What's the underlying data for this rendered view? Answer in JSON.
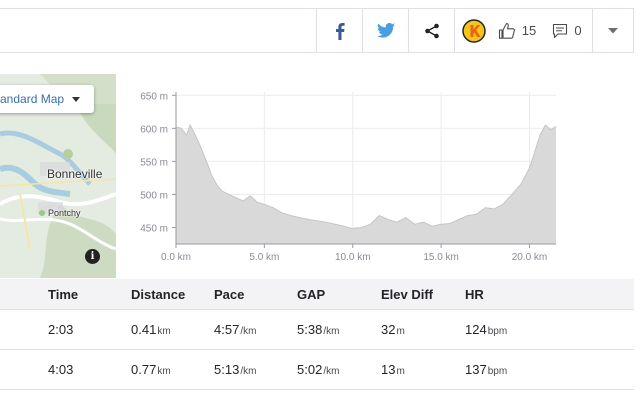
{
  "actions": {
    "kudos_count": "15",
    "comments_count": "0"
  },
  "map": {
    "type_label": "andard Map",
    "town_main": "Bonneville",
    "town_small": "Pontchy",
    "info_label": "i"
  },
  "chart_data": {
    "type": "area",
    "xlabel": "",
    "ylabel": "",
    "x_ticks": [
      "0.0 km",
      "5.0 km",
      "10.0 km",
      "15.0 km",
      "20.0 km"
    ],
    "y_ticks": [
      "650 m",
      "600 m",
      "550 m",
      "500 m",
      "450 m"
    ],
    "xlim": [
      0,
      21.5
    ],
    "ylim": [
      425,
      655
    ],
    "grid": true,
    "fill_color": "#d9d9d9",
    "x": [
      0,
      0.3,
      0.6,
      0.8,
      1.0,
      1.3,
      1.5,
      1.8,
      2.0,
      2.3,
      2.6,
      3.0,
      3.4,
      3.8,
      4.2,
      4.6,
      5.0,
      5.5,
      6.0,
      6.5,
      7.0,
      7.5,
      8.0,
      8.5,
      9.0,
      9.5,
      10.0,
      10.5,
      11.0,
      11.5,
      12.0,
      12.5,
      13.0,
      13.5,
      14.0,
      14.5,
      15.0,
      15.5,
      16.0,
      16.5,
      17.0,
      17.5,
      18.0,
      18.5,
      19.0,
      19.5,
      20.0,
      20.3,
      20.6,
      20.9,
      21.2,
      21.5
    ],
    "y": [
      602,
      600,
      590,
      605,
      595,
      578,
      565,
      545,
      530,
      515,
      505,
      500,
      495,
      490,
      498,
      488,
      485,
      480,
      472,
      468,
      465,
      462,
      460,
      458,
      455,
      452,
      448,
      450,
      455,
      468,
      462,
      458,
      465,
      455,
      458,
      452,
      455,
      456,
      462,
      468,
      470,
      480,
      478,
      485,
      500,
      515,
      540,
      565,
      590,
      605,
      598,
      603
    ]
  },
  "splits": {
    "headers": [
      "Time",
      "Distance",
      "Pace",
      "GAP",
      "Elev Diff",
      "HR"
    ],
    "rows": [
      {
        "time": "2:03",
        "distance": "0.41",
        "distance_unit": "km",
        "pace": "4:57",
        "pace_unit": "/km",
        "gap": "5:38",
        "gap_unit": "/km",
        "elev": "32",
        "elev_unit": "m",
        "hr": "124",
        "hr_unit": "bpm"
      },
      {
        "time": "4:03",
        "distance": "0.77",
        "distance_unit": "km",
        "pace": "5:13",
        "pace_unit": "/km",
        "gap": "5:02",
        "gap_unit": "/km",
        "elev": "13",
        "elev_unit": "m",
        "hr": "137",
        "hr_unit": "bpm"
      }
    ]
  }
}
